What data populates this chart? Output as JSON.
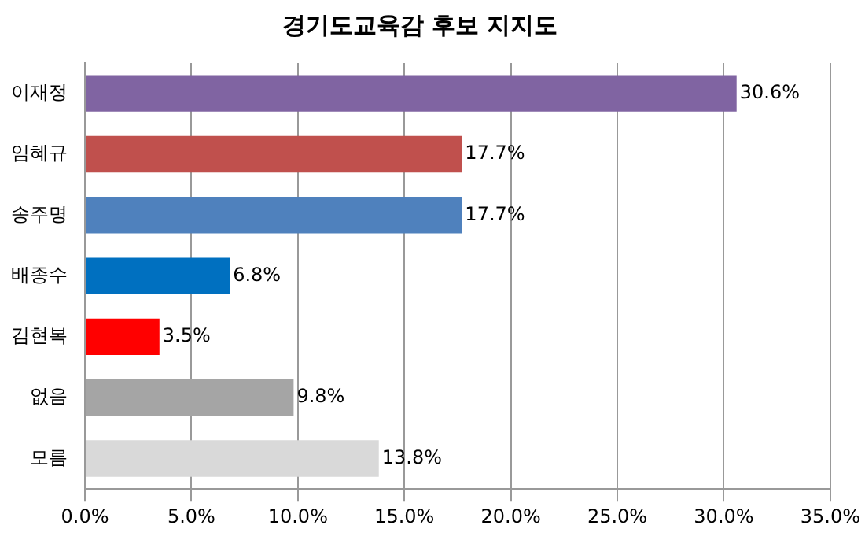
{
  "chart_data": {
    "type": "bar",
    "orientation": "horizontal",
    "title": "경기도교육감 후보 지지도",
    "categories": [
      "이재정",
      "임혜규",
      "송주명",
      "배종수",
      "김현복",
      "없음",
      "모름"
    ],
    "values": [
      30.6,
      17.7,
      17.7,
      6.8,
      3.5,
      9.8,
      13.8
    ],
    "colors": [
      "#8064a2",
      "#c0504d",
      "#4f81bd",
      "#0070c0",
      "#ff0000",
      "#a5a5a5",
      "#d9d9d9"
    ],
    "value_labels": [
      "30.6%",
      "17.7%",
      "17.7%",
      "6.8%",
      "3.5%",
      "9.8%",
      "13.8%"
    ],
    "xlim": [
      0,
      35
    ],
    "xticks": [
      {
        "value": 0,
        "label": "0.0%"
      },
      {
        "value": 5,
        "label": "5.0%"
      },
      {
        "value": 10,
        "label": "10.0%"
      },
      {
        "value": 15,
        "label": "15.0%"
      },
      {
        "value": 20,
        "label": "20.0%"
      },
      {
        "value": 25,
        "label": "25.0%"
      },
      {
        "value": 30,
        "label": "30.0%"
      },
      {
        "value": 35,
        "label": "35.0%"
      }
    ],
    "grid": "x",
    "legend": false
  }
}
